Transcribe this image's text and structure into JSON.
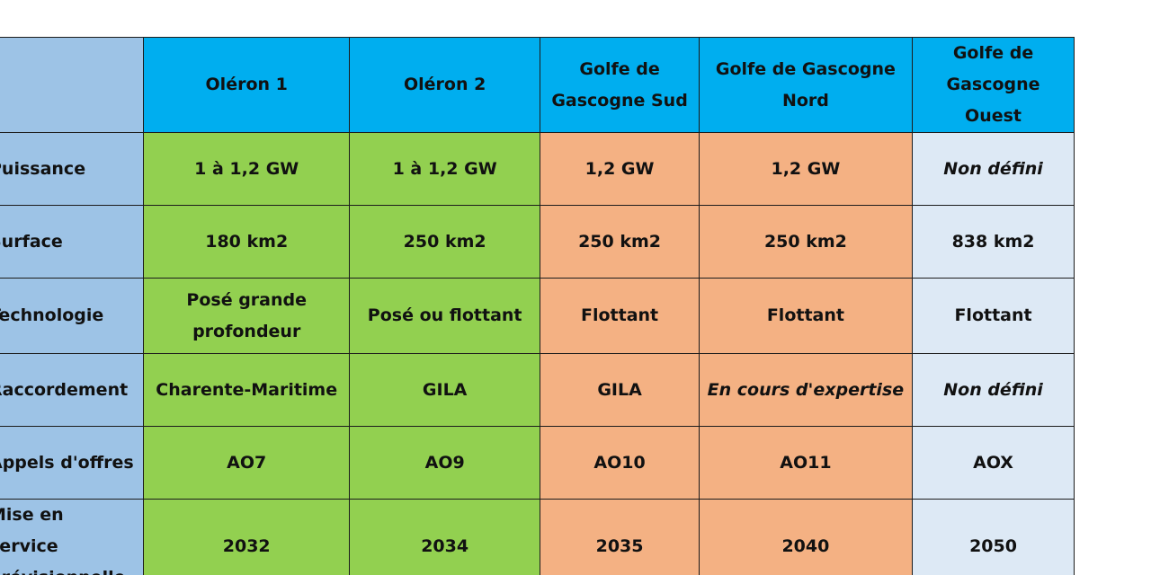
{
  "header": {
    "corner": "",
    "columns": [
      "Oléron 1",
      "Oléron 2",
      "Golfe de Gascogne Sud",
      "Golfe de Gascogne Nord",
      "Golfe de Gascogne Ouest"
    ]
  },
  "rows": [
    {
      "label": "Puissance",
      "cells": [
        "1 à 1,2 GW",
        "1 à 1,2 GW",
        "1,2 GW",
        "1,2 GW",
        "Non défini"
      ]
    },
    {
      "label": "Surface",
      "cells": [
        "180 km2",
        "250 km2",
        "250 km2",
        "250 km2",
        "838 km2"
      ]
    },
    {
      "label": "Technologie",
      "cells": [
        "Posé grande profondeur",
        "Posé ou flottant",
        "Flottant",
        "Flottant",
        "Flottant"
      ]
    },
    {
      "label": "Raccordement",
      "cells": [
        "Charente-Maritime",
        "GILA",
        "GILA",
        "En cours d'expertise",
        "Non défini"
      ]
    },
    {
      "label": "Appels d'offres",
      "cells": [
        "AO7",
        "AO9",
        "AO10",
        "AO11",
        "AOX"
      ]
    },
    {
      "label": "Mise en service prévisionnelle",
      "cells": [
        "2032",
        "2034",
        "2035",
        "2040",
        "2050"
      ]
    }
  ],
  "colors": {
    "header": "#00aeef",
    "label_column": "#9dc3e6",
    "green": "#92d050",
    "orange": "#f4b183",
    "light": "#dde9f5"
  }
}
